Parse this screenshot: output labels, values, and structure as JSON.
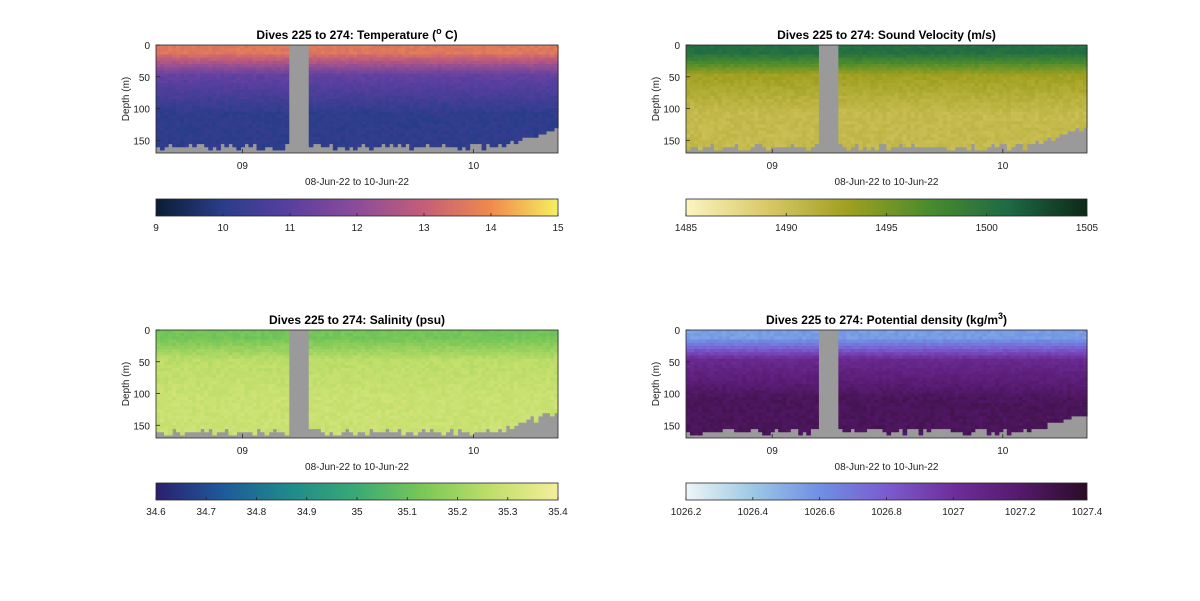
{
  "chart_data": [
    {
      "type": "heatmap",
      "title": "Dives 225 to 274: Temperature (",
      "title_sup": "o",
      "title_end": " C)",
      "ylabel": "Depth (m)",
      "xlabel": "08-Jun-22 to 10-Jun-22",
      "xticks": [
        "09",
        "10"
      ],
      "yticks": [
        "0",
        "50",
        "100",
        "150"
      ],
      "ylim": [
        0,
        170
      ],
      "y_reversed": true,
      "colorbar": {
        "ticks": [
          "9",
          "10",
          "11",
          "12",
          "13",
          "14",
          "15"
        ],
        "range": [
          9,
          15
        ],
        "colors": [
          "#0b1d33",
          "#2a3d8a",
          "#5a3fa0",
          "#8c4c99",
          "#c45e78",
          "#f08a4b",
          "#f5f060"
        ]
      },
      "surface_value": 13.6,
      "mid_value": 11.2,
      "deep_value": 10.1,
      "missing_color": "#9a9a9a"
    },
    {
      "type": "heatmap",
      "title": "Dives 225 to 274: Sound Velocity (m/s)",
      "title_sup": "",
      "title_end": "",
      "ylabel": "Depth (m)",
      "xlabel": "08-Jun-22 to 10-Jun-22",
      "xticks": [
        "09",
        "10"
      ],
      "yticks": [
        "0",
        "50",
        "100",
        "150"
      ],
      "ylim": [
        0,
        170
      ],
      "y_reversed": true,
      "colorbar": {
        "ticks": [
          "1485",
          "1490",
          "1495",
          "1500",
          "1505"
        ],
        "range": [
          1485,
          1505
        ],
        "colors": [
          "#fbf5c0",
          "#d9c968",
          "#a0a020",
          "#4c8c2c",
          "#1e6b45",
          "#0e2818"
        ]
      },
      "surface_value": 1500.5,
      "mid_value": 1493.0,
      "deep_value": 1490.5,
      "missing_color": "#9a9a9a"
    },
    {
      "type": "heatmap",
      "title": "Dives 225 to 274: Salinity (psu)",
      "title_sup": "",
      "title_end": "",
      "ylabel": "Depth (m)",
      "xlabel": "08-Jun-22 to 10-Jun-22",
      "xticks": [
        "09",
        "10"
      ],
      "yticks": [
        "0",
        "50",
        "100",
        "150"
      ],
      "ylim": [
        0,
        170
      ],
      "y_reversed": true,
      "colorbar": {
        "ticks": [
          "34.6",
          "34.7",
          "34.8",
          "34.9",
          "35",
          "35.1",
          "35.2",
          "35.3",
          "35.4"
        ],
        "range": [
          34.6,
          35.4
        ],
        "colors": [
          "#2b1f6e",
          "#1e5a9a",
          "#1f8a8a",
          "#3aaa74",
          "#7bc856",
          "#c0de6a",
          "#f5ee9a"
        ]
      },
      "surface_value": 35.12,
      "mid_value": 35.26,
      "deep_value": 35.29,
      "missing_color": "#9a9a9a"
    },
    {
      "type": "heatmap",
      "title": "Dives 225 to 274: Potential density (kg/m",
      "title_sup": "3",
      "title_end": ")",
      "ylabel": "Depth (m)",
      "xlabel": "08-Jun-22 to 10-Jun-22",
      "xticks": [
        "09",
        "10"
      ],
      "yticks": [
        "0",
        "50",
        "100",
        "150"
      ],
      "ylim": [
        0,
        170
      ],
      "y_reversed": true,
      "colorbar": {
        "ticks": [
          "1026.2",
          "1026.4",
          "1026.6",
          "1026.8",
          "1027",
          "1027.2",
          "1027.4"
        ],
        "range": [
          1026.2,
          1027.4
        ],
        "colors": [
          "#eef6f7",
          "#9cc8e4",
          "#6f8fe4",
          "#7a5cd0",
          "#6e2e9a",
          "#55196c",
          "#2a0c25"
        ]
      },
      "surface_value": 1026.55,
      "mid_value": 1027.05,
      "deep_value": 1027.25,
      "missing_color": "#9a9a9a"
    }
  ]
}
